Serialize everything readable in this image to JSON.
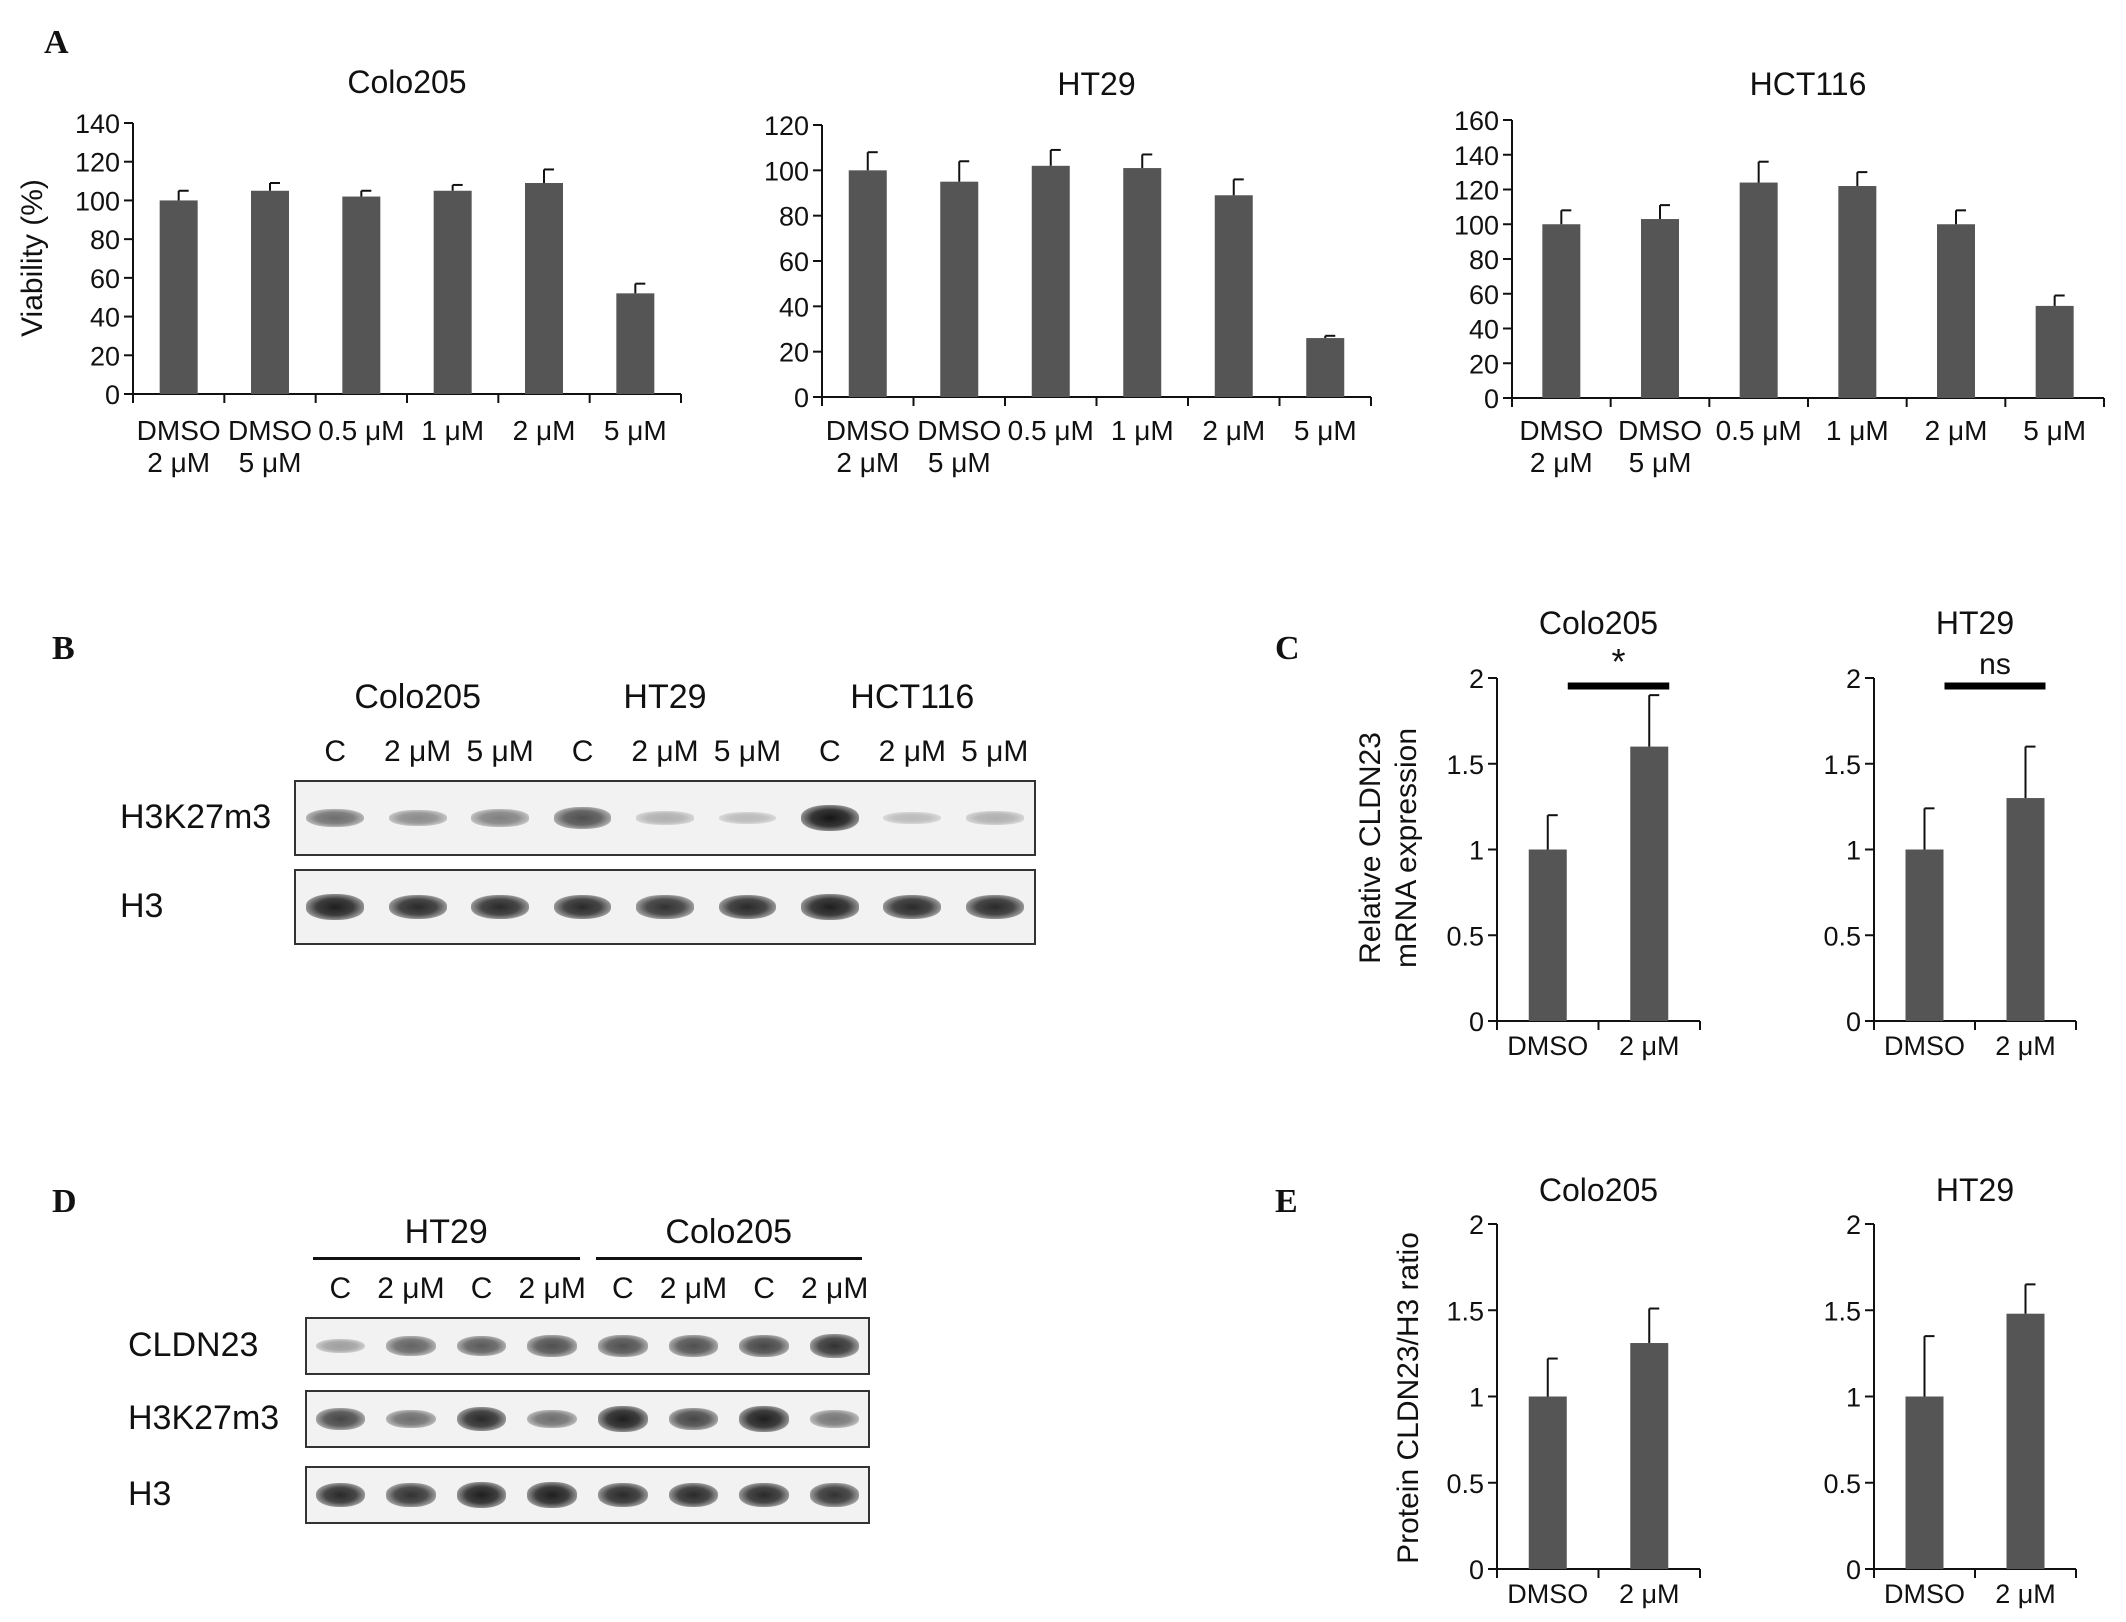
{
  "panel_letters": {
    "a": "A",
    "b": "B",
    "c": "C",
    "d": "D",
    "e": "E"
  },
  "colors": {
    "bar": "#555555",
    "axis": "#111111",
    "sig_bar": "#000000"
  },
  "chart_data": [
    {
      "id": "A1",
      "type": "bar",
      "title": "Colo205",
      "ylabel": "Viability (%)",
      "categories": [
        "DMSO\n2 μM",
        "DMSO\n5 μM",
        "0.5 μM",
        "1 μM",
        "2 μM",
        "5 μM"
      ],
      "values": [
        100,
        105,
        102,
        105,
        109,
        52
      ],
      "errors": [
        5,
        4,
        3,
        3,
        7,
        5
      ],
      "ylim": [
        0,
        140
      ],
      "yticks": [
        0,
        20,
        40,
        60,
        80,
        100,
        120,
        140
      ]
    },
    {
      "id": "A2",
      "type": "bar",
      "title": "HT29",
      "ylabel": "",
      "categories": [
        "DMSO\n2 μM",
        "DMSO\n5 μM",
        "0.5 μM",
        "1 μM",
        "2 μM",
        "5 μM"
      ],
      "values": [
        100,
        95,
        102,
        101,
        89,
        26
      ],
      "errors": [
        8,
        9,
        7,
        6,
        7,
        1
      ],
      "ylim": [
        0,
        120
      ],
      "yticks": [
        0,
        20,
        40,
        60,
        80,
        100,
        120
      ]
    },
    {
      "id": "A3",
      "type": "bar",
      "title": "HCT116",
      "ylabel": "",
      "categories": [
        "DMSO\n2 μM",
        "DMSO\n5 μM",
        "0.5 μM",
        "1 μM",
        "2 μM",
        "5 μM"
      ],
      "values": [
        100,
        103,
        124,
        122,
        100,
        53
      ],
      "errors": [
        8,
        8,
        12,
        8,
        8,
        6
      ],
      "ylim": [
        0,
        160
      ],
      "yticks": [
        0,
        20,
        40,
        60,
        80,
        100,
        120,
        140,
        160
      ]
    },
    {
      "id": "C1",
      "type": "bar",
      "title": "Colo205",
      "ylabel": "Relative CLDN23\nmRNA expression",
      "categories": [
        "DMSO",
        "2 μM"
      ],
      "values": [
        1.0,
        1.6
      ],
      "errors": [
        0.2,
        0.3
      ],
      "ylim": [
        0,
        2
      ],
      "yticks": [
        0,
        0.5,
        1,
        1.5,
        2
      ],
      "sig": "*"
    },
    {
      "id": "C2",
      "type": "bar",
      "title": "HT29",
      "ylabel": "",
      "categories": [
        "DMSO",
        "2 μM"
      ],
      "values": [
        1.0,
        1.3
      ],
      "errors": [
        0.24,
        0.3
      ],
      "ylim": [
        0,
        2
      ],
      "yticks": [
        0,
        0.5,
        1,
        1.5,
        2
      ],
      "sig": "ns"
    },
    {
      "id": "E1",
      "type": "bar",
      "title": "Colo205",
      "ylabel": "Protein CLDN23/H3 ratio",
      "categories": [
        "DMSO",
        "2 μM"
      ],
      "values": [
        1.0,
        1.31
      ],
      "errors": [
        0.22,
        0.2
      ],
      "ylim": [
        0,
        2
      ],
      "yticks": [
        0,
        0.5,
        1,
        1.5,
        2
      ]
    },
    {
      "id": "E2",
      "type": "bar",
      "title": "HT29",
      "ylabel": "",
      "categories": [
        "DMSO",
        "2 μM"
      ],
      "values": [
        1.0,
        1.48
      ],
      "errors": [
        0.35,
        0.17
      ],
      "ylim": [
        0,
        2
      ],
      "yticks": [
        0,
        0.5,
        1,
        1.5,
        2
      ]
    }
  ],
  "blot_b": {
    "groups": [
      "Colo205",
      "HT29",
      "HCT116"
    ],
    "lanes": [
      "C",
      "2 μM",
      "5 μM",
      "C",
      "2 μM",
      "5 μM",
      "C",
      "2 μM",
      "5 μM"
    ],
    "rows": [
      {
        "label": "H3K27m3",
        "intensity": [
          0.55,
          0.4,
          0.45,
          0.7,
          0.2,
          0.15,
          1.0,
          0.15,
          0.2
        ]
      },
      {
        "label": "H3",
        "intensity": [
          0.95,
          0.9,
          0.9,
          0.9,
          0.85,
          0.9,
          0.95,
          0.9,
          0.9
        ]
      }
    ]
  },
  "blot_d": {
    "groups": [
      "HT29",
      "Colo205"
    ],
    "lanes": [
      "C",
      "2 μM",
      "C",
      "2 μM",
      "C",
      "2 μM",
      "C",
      "2 μM"
    ],
    "rows": [
      {
        "label": "CLDN23",
        "intensity": [
          0.3,
          0.6,
          0.65,
          0.7,
          0.7,
          0.7,
          0.75,
          0.85
        ]
      },
      {
        "label": "H3K27m3",
        "intensity": [
          0.75,
          0.55,
          0.9,
          0.55,
          0.95,
          0.75,
          0.95,
          0.5
        ]
      },
      {
        "label": "H3",
        "intensity": [
          0.9,
          0.85,
          0.95,
          0.95,
          0.9,
          0.9,
          0.9,
          0.85
        ]
      }
    ]
  }
}
